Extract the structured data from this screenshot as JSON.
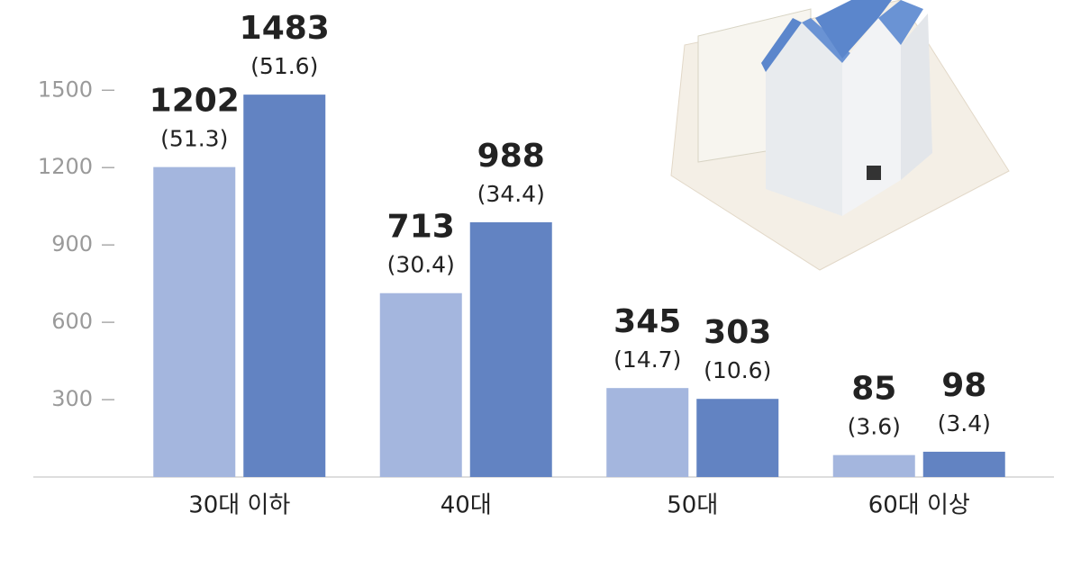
{
  "chart_data": {
    "type": "bar",
    "categories": [
      "30대 이하",
      "40대",
      "50대",
      "60대 이상"
    ],
    "series": [
      {
        "color": "#a4b6de",
        "values": [
          1202,
          713,
          345,
          85
        ],
        "shares": [
          51.3,
          30.4,
          14.7,
          3.6
        ],
        "share_labels": [
          "(51.3)",
          "(30.4)",
          "(14.7)",
          "(3.6)"
        ]
      },
      {
        "color": "#6283c2",
        "values": [
          1483,
          988,
          303,
          98
        ],
        "shares": [
          51.6,
          34.4,
          10.6,
          3.4
        ],
        "share_labels": [
          "(51.6)",
          "(34.4)",
          "(10.6)",
          "(3.4)"
        ]
      }
    ],
    "ylim": [
      0,
      1850
    ],
    "yticks": [
      300,
      600,
      900,
      1200,
      1500
    ],
    "grid": false
  }
}
